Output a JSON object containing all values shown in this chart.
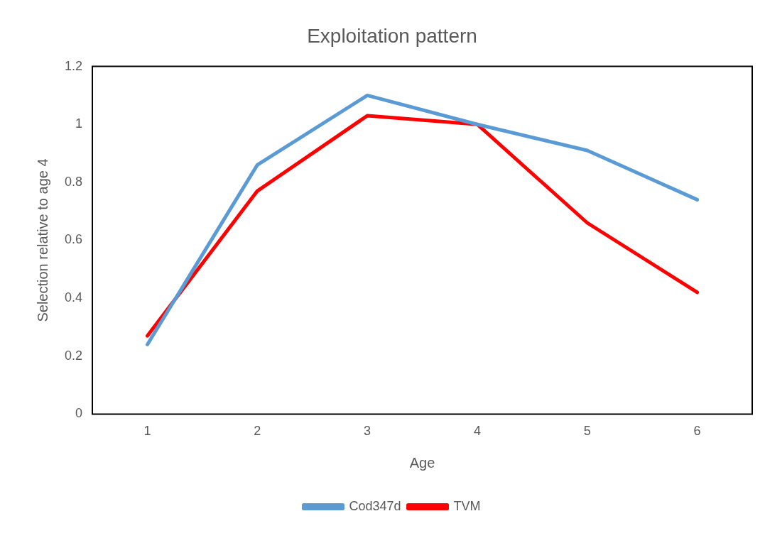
{
  "chart_data": {
    "type": "line",
    "title": "Exploitation pattern",
    "xlabel": "Age",
    "ylabel": "Selection relative to age 4",
    "categories": [
      "1",
      "2",
      "3",
      "4",
      "5",
      "6"
    ],
    "series": [
      {
        "name": "Cod347d",
        "color": "#5b9bd5",
        "values": [
          0.24,
          0.86,
          1.1,
          1.0,
          0.91,
          0.74
        ]
      },
      {
        "name": "TVM",
        "color": "#ff0000",
        "values": [
          0.27,
          0.77,
          1.03,
          1.0,
          0.66,
          0.42
        ]
      }
    ],
    "ylim": [
      0,
      1.2
    ],
    "yticks": [
      0,
      0.2,
      0.4,
      0.6,
      0.8,
      1,
      1.2
    ],
    "grid": false,
    "legend": "bottom",
    "marker": "none",
    "line_style": "solid"
  }
}
